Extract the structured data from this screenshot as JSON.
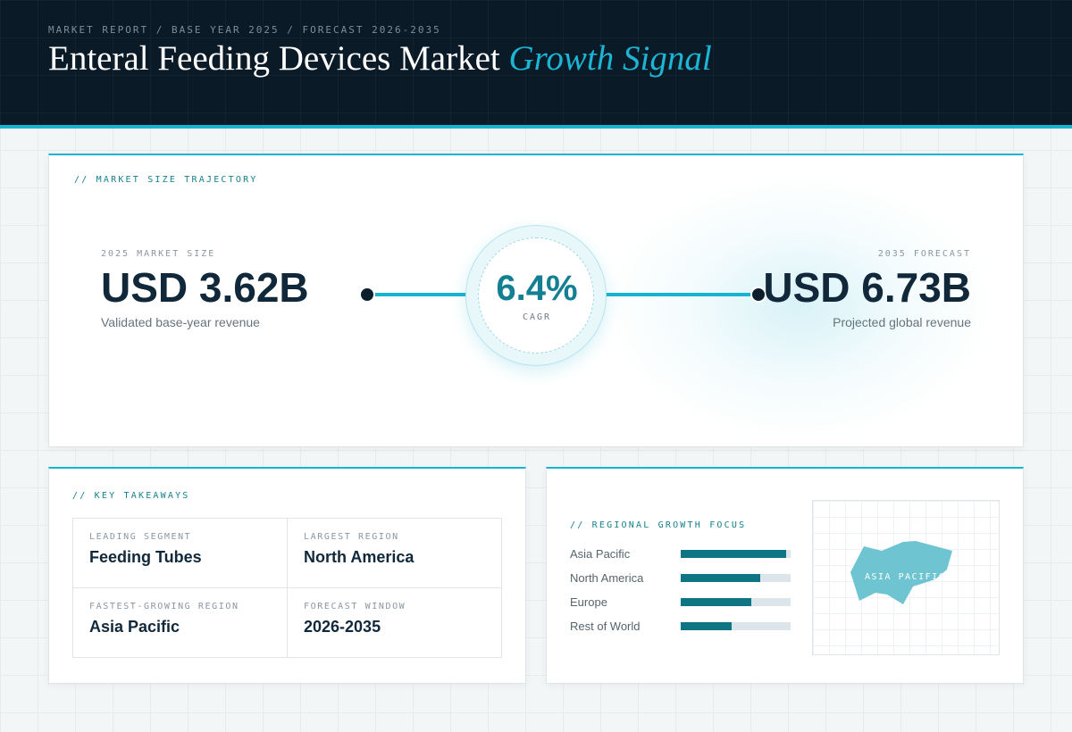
{
  "header": {
    "eyebrow": "MARKET REPORT / BASE YEAR 2025 / FORECAST 2026-2035",
    "title_main": "Enteral Feeding Devices Market",
    "title_accent": "Growth Signal"
  },
  "trajectory": {
    "label": "// MARKET SIZE TRAJECTORY",
    "start": {
      "eyebrow": "2025 MARKET SIZE",
      "value": "USD 3.62B",
      "caption": "Validated base-year revenue"
    },
    "end": {
      "eyebrow": "2035 FORECAST",
      "value": "USD 6.73B",
      "caption": "Projected global revenue"
    },
    "cagr": {
      "value": "6.4%",
      "label": "CAGR"
    }
  },
  "takeaways": {
    "label": "// KEY TAKEAWAYS",
    "items": [
      {
        "label": "LEADING SEGMENT",
        "value": "Feeding Tubes"
      },
      {
        "label": "LARGEST REGION",
        "value": "North America"
      },
      {
        "label": "FASTEST-GROWING REGION",
        "value": "Asia Pacific"
      },
      {
        "label": "FORECAST WINDOW",
        "value": "2026-2035"
      }
    ]
  },
  "regional": {
    "label": "// REGIONAL GROWTH FOCUS",
    "bars": [
      {
        "name": "Asia Pacific",
        "level": 0.96
      },
      {
        "name": "North America",
        "level": 0.72
      },
      {
        "name": "Europe",
        "level": 0.64
      },
      {
        "name": "Rest of World",
        "level": 0.46
      }
    ],
    "map_label": "ASIA PACIFIC"
  },
  "colors": {
    "header_bg": "#0a1a27",
    "accent": "#17b3cf",
    "bar_fill": "#0e7585",
    "map_region": "#6ec4d0"
  }
}
